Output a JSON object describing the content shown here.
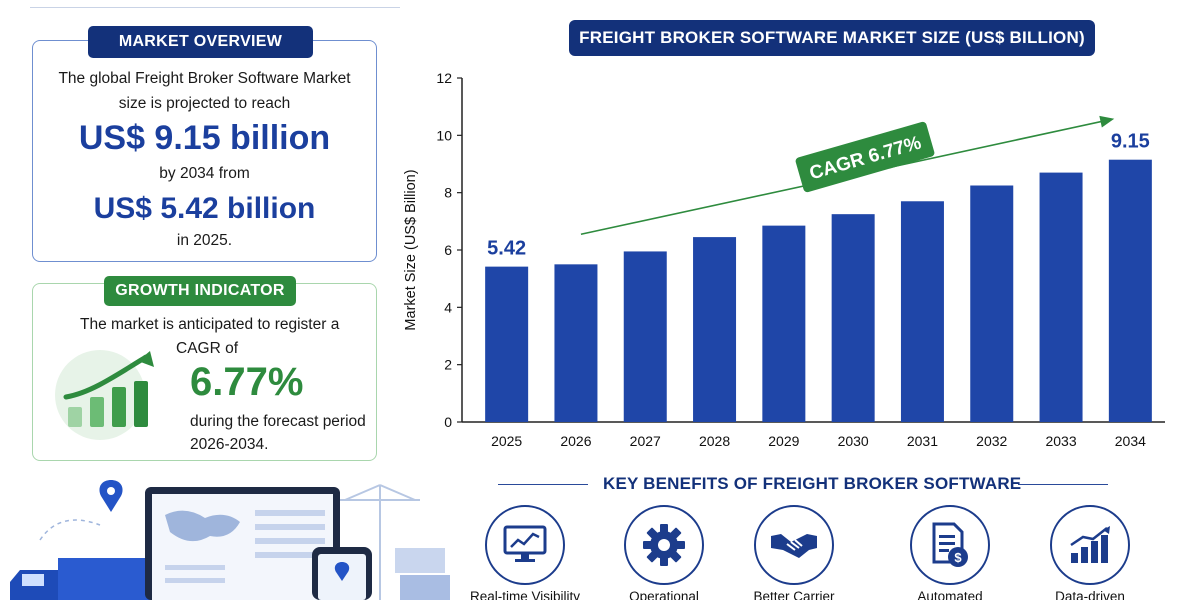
{
  "overview": {
    "badge": "MARKET OVERVIEW",
    "line1": "The global Freight Broker Software Market",
    "line2": "size is projected to reach",
    "value_2034": "US$ 9.15 billion",
    "line3": "by 2034 from",
    "value_2025": "US$ 5.42 billion",
    "line4": "in 2025."
  },
  "growth": {
    "badge": "GROWTH INDICATOR",
    "line1": "The market is anticipated to register a",
    "line2": "CAGR of",
    "cagr": "6.77%",
    "line3": "during the forecast period",
    "line4": "2026-2034."
  },
  "chart_header": "FREIGHT BROKER SOFTWARE MARKET SIZE (US$ BILLION)",
  "chart_data": {
    "type": "bar",
    "title": "FREIGHT BROKER SOFTWARE MARKET SIZE (US$ BILLION)",
    "xlabel": "",
    "ylabel": "Market Size (US$ Billion)",
    "categories": [
      "2025",
      "2026",
      "2027",
      "2028",
      "2029",
      "2030",
      "2031",
      "2032",
      "2033",
      "2034"
    ],
    "values": [
      5.42,
      5.5,
      5.95,
      6.45,
      6.85,
      7.25,
      7.7,
      8.25,
      8.7,
      9.15
    ],
    "ylim": [
      0,
      12
    ],
    "yticks": [
      0,
      2,
      4,
      6,
      8,
      10,
      12
    ],
    "data_labels": [
      {
        "category": "2025",
        "text": "5.42"
      },
      {
        "category": "2034",
        "text": "9.15"
      }
    ],
    "annotation": "CAGR 6.77%",
    "grid": false,
    "bar_color": "#1f46a8",
    "arrow_color": "#2e8b3e"
  },
  "benefits": {
    "title": "KEY BENEFITS OF FREIGHT BROKER SOFTWARE",
    "items": [
      {
        "icon": "monitor-chart-icon",
        "label": "Real-time Visibility"
      },
      {
        "icon": "gear-icon",
        "label": "Operational"
      },
      {
        "icon": "handshake-icon",
        "label": "Better Carrier"
      },
      {
        "icon": "invoice-dollar-icon",
        "label": "Automated"
      },
      {
        "icon": "bar-growth-icon",
        "label": "Data-driven"
      }
    ]
  },
  "colors": {
    "navy": "#13317a",
    "blue": "#1f46a8",
    "green": "#2e8b3e"
  }
}
